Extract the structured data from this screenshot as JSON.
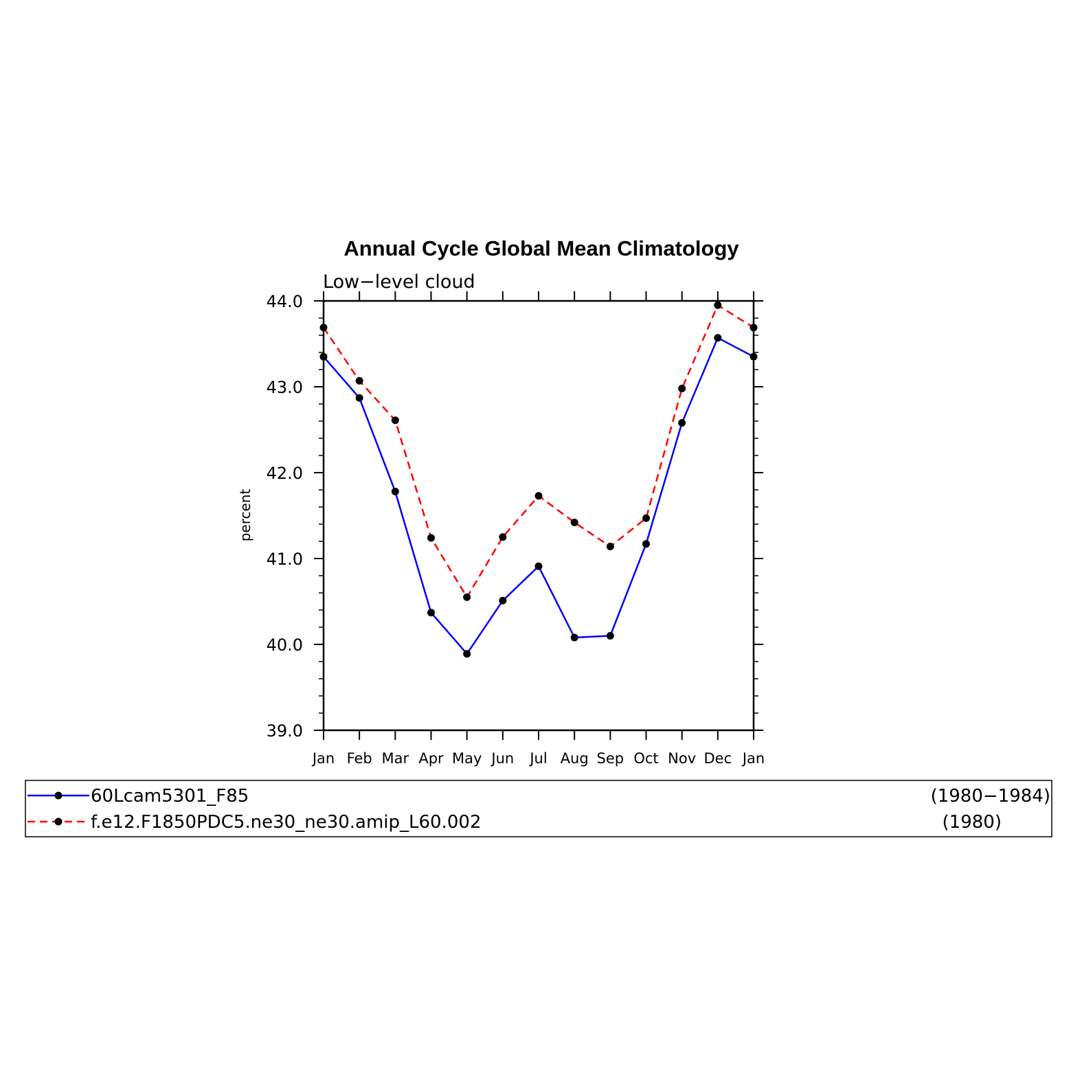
{
  "chart_data": {
    "type": "line",
    "title": "Annual Cycle Global Mean Climatology",
    "subtitle": "Low−level cloud",
    "xlabel": "",
    "ylabel": "percent",
    "categories": [
      "Jan",
      "Feb",
      "Mar",
      "Apr",
      "May",
      "Jun",
      "Jul",
      "Aug",
      "Sep",
      "Oct",
      "Nov",
      "Dec",
      "Jan"
    ],
    "ylim": [
      39.0,
      44.0
    ],
    "yticks": [
      "39.0",
      "40.0",
      "41.0",
      "42.0",
      "43.0",
      "44.0"
    ],
    "grid": false,
    "legend_position": "bottom",
    "series": [
      {
        "name": "60Lcam5301_F85",
        "period": "(1980−1984)",
        "color": "#0000ff",
        "dash": "solid",
        "values": [
          43.35,
          42.87,
          41.78,
          40.37,
          39.89,
          40.51,
          40.91,
          40.08,
          40.1,
          41.17,
          42.58,
          43.57,
          43.35
        ]
      },
      {
        "name": "f.e12.F1850PDC5.ne30_ne30.amip_L60.002",
        "period": "(1980)",
        "color": "#ff0000",
        "dash": "dashed",
        "values": [
          43.69,
          43.07,
          42.61,
          41.24,
          40.55,
          41.25,
          41.73,
          41.42,
          41.14,
          41.47,
          42.98,
          43.95,
          43.69
        ]
      }
    ]
  }
}
